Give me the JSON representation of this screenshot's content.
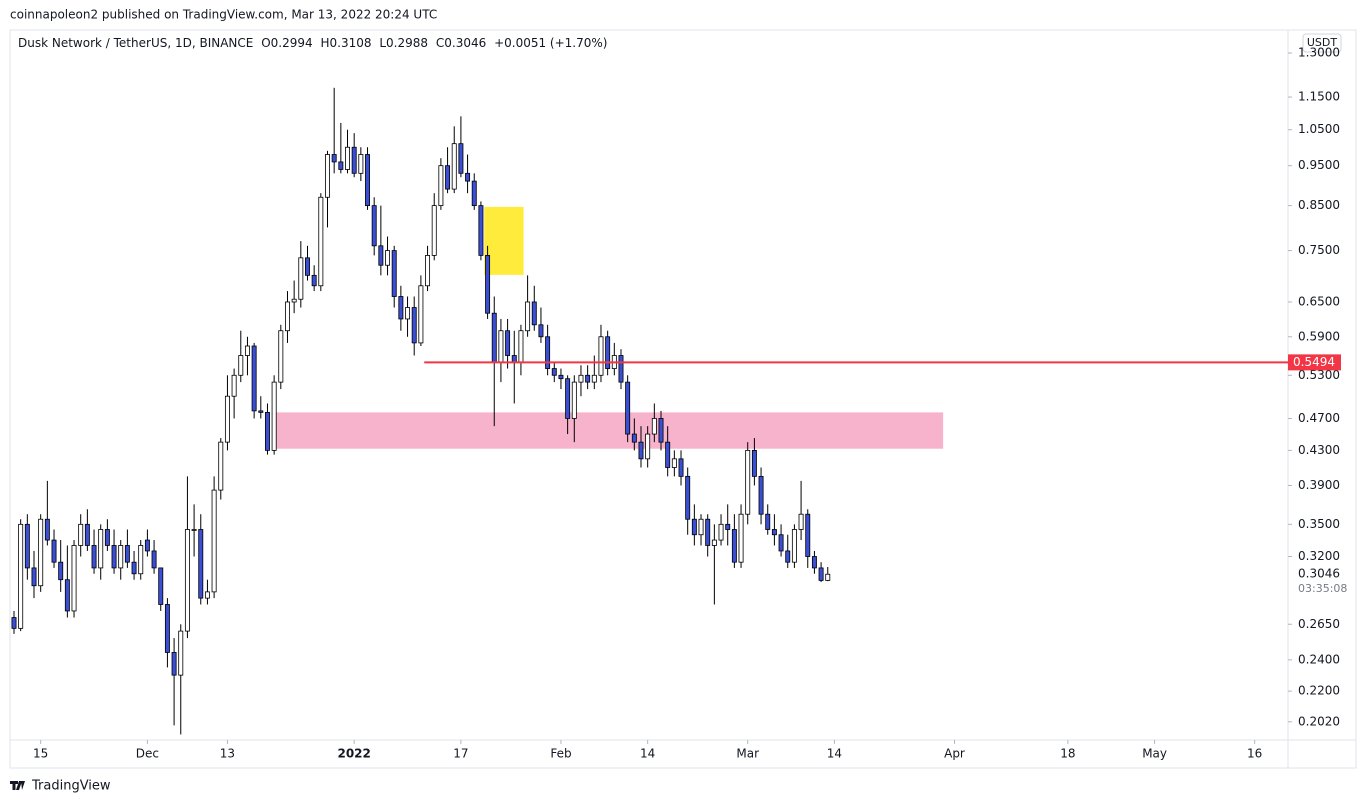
{
  "header": "coinnapoleon2 published on TradingView.com, Mar 13, 2022 20:24 UTC",
  "footer": "TradingView",
  "chart_data": {
    "type": "candlestick",
    "symbol": "Dusk Network / TetherUS, 1D, BINANCE",
    "ohlc_labels": [
      "O",
      "H",
      "L",
      "C"
    ],
    "change_text": "+0.0051 (+1.70%)",
    "currency": "USDT",
    "countdown": "03:35:08",
    "log_scale": true,
    "grid": false,
    "up_color": "#ffffff",
    "down_color": "#3a4fd3",
    "xlim": [
      -0.6,
      191
    ],
    "xticks": [
      {
        "value": 4,
        "label": "15"
      },
      {
        "value": 20,
        "label": "Dec"
      },
      {
        "value": 32,
        "label": "13"
      },
      {
        "value": 51,
        "label": "2022"
      },
      {
        "value": 67,
        "label": "17"
      },
      {
        "value": 82,
        "label": "Feb"
      },
      {
        "value": 95,
        "label": "14"
      },
      {
        "value": 110,
        "label": "Mar"
      },
      {
        "value": 123,
        "label": "14"
      },
      {
        "value": 141,
        "label": "Apr"
      },
      {
        "value": 158,
        "label": "18"
      },
      {
        "value": 171,
        "label": "May"
      },
      {
        "value": 186,
        "label": "16"
      }
    ],
    "ylim": [
      0.192,
      1.386
    ],
    "yticks": [
      {
        "value": 1.3,
        "label": "1.3000"
      },
      {
        "value": 1.15,
        "label": "1.1500"
      },
      {
        "value": 1.05,
        "label": "1.0500"
      },
      {
        "value": 0.95,
        "label": "0.9500"
      },
      {
        "value": 0.85,
        "label": "0.8500"
      },
      {
        "value": 0.75,
        "label": "0.7500"
      },
      {
        "value": 0.65,
        "label": "0.6500"
      },
      {
        "value": 0.59,
        "label": "0.5900"
      },
      {
        "value": 0.53,
        "label": "0.5300"
      },
      {
        "value": 0.47,
        "label": "0.4700"
      },
      {
        "value": 0.43,
        "label": "0.4300"
      },
      {
        "value": 0.39,
        "label": "0.3900"
      },
      {
        "value": 0.35,
        "label": "0.3500"
      },
      {
        "value": 0.32,
        "label": "0.3200"
      },
      {
        "value": 0.265,
        "label": "0.2650"
      },
      {
        "value": 0.24,
        "label": "0.2400"
      },
      {
        "value": 0.22,
        "label": "0.2200"
      },
      {
        "value": 0.202,
        "label": "0.2020"
      }
    ],
    "open": [
      0.27,
      0.262,
      0.35,
      0.31,
      0.295,
      0.355,
      0.335,
      0.315,
      0.3,
      0.275,
      0.33,
      0.35,
      0.33,
      0.31,
      0.345,
      0.33,
      0.31,
      0.33,
      0.315,
      0.305,
      0.335,
      0.325,
      0.31,
      0.28,
      0.245,
      0.23,
      0.26,
      0.345,
      0.345,
      0.285,
      0.29,
      0.385,
      0.44,
      0.5,
      0.53,
      0.56,
      0.575,
      0.48,
      0.478,
      0.43,
      0.52,
      0.6,
      0.65,
      0.655,
      0.735,
      0.7,
      0.68,
      0.87,
      0.98,
      0.96,
      0.94,
      1.0,
      0.93,
      0.98,
      0.85,
      0.76,
      0.72,
      0.75,
      0.66,
      0.62,
      0.64,
      0.58,
      0.68,
      0.74,
      0.85,
      0.95,
      0.89,
      1.01,
      0.93,
      0.91,
      0.85,
      0.74,
      0.63,
      0.55,
      0.6,
      0.56,
      0.55,
      0.6,
      0.65,
      0.61,
      0.59,
      0.54,
      0.53,
      0.525,
      0.47,
      0.52,
      0.53,
      0.52,
      0.53,
      0.59,
      0.54,
      0.56,
      0.52,
      0.45,
      0.44,
      0.42,
      0.45,
      0.47,
      0.44,
      0.41,
      0.42,
      0.4,
      0.355,
      0.34,
      0.355,
      0.33,
      0.335,
      0.35,
      0.345,
      0.315,
      0.36,
      0.43,
      0.4,
      0.36,
      0.345,
      0.34,
      0.325,
      0.315,
      0.345,
      0.36,
      0.32,
      0.31,
      0.2994
    ],
    "high": [
      0.275,
      0.355,
      0.36,
      0.325,
      0.36,
      0.395,
      0.345,
      0.335,
      0.33,
      0.335,
      0.36,
      0.365,
      0.345,
      0.35,
      0.355,
      0.345,
      0.335,
      0.345,
      0.325,
      0.335,
      0.345,
      0.335,
      0.31,
      0.285,
      0.255,
      0.265,
      0.4,
      0.37,
      0.36,
      0.3,
      0.4,
      0.445,
      0.53,
      0.54,
      0.6,
      0.59,
      0.58,
      0.5,
      0.49,
      0.53,
      0.61,
      0.67,
      0.69,
      0.77,
      0.76,
      0.72,
      0.88,
      0.99,
      1.18,
      1.07,
      1.05,
      1.04,
      1.0,
      1.0,
      0.87,
      0.85,
      0.78,
      0.76,
      0.68,
      0.66,
      0.66,
      0.7,
      0.76,
      0.88,
      0.97,
      1.0,
      1.06,
      1.09,
      0.98,
      0.93,
      0.86,
      0.76,
      0.66,
      0.62,
      0.62,
      0.6,
      0.61,
      0.7,
      0.68,
      0.64,
      0.61,
      0.55,
      0.54,
      0.53,
      0.53,
      0.545,
      0.545,
      0.56,
      0.61,
      0.6,
      0.58,
      0.57,
      0.53,
      0.47,
      0.46,
      0.46,
      0.49,
      0.48,
      0.46,
      0.43,
      0.43,
      0.41,
      0.37,
      0.36,
      0.36,
      0.35,
      0.36,
      0.37,
      0.36,
      0.37,
      0.44,
      0.445,
      0.41,
      0.37,
      0.36,
      0.35,
      0.34,
      0.35,
      0.395,
      0.365,
      0.325,
      0.315,
      0.3108
    ],
    "low": [
      0.258,
      0.26,
      0.3,
      0.285,
      0.29,
      0.33,
      0.31,
      0.29,
      0.27,
      0.27,
      0.32,
      0.325,
      0.305,
      0.3,
      0.325,
      0.305,
      0.3,
      0.31,
      0.3,
      0.3,
      0.32,
      0.305,
      0.275,
      0.235,
      0.2,
      0.195,
      0.255,
      0.32,
      0.28,
      0.28,
      0.285,
      0.375,
      0.43,
      0.47,
      0.52,
      0.53,
      0.47,
      0.47,
      0.425,
      0.425,
      0.51,
      0.58,
      0.63,
      0.64,
      0.69,
      0.67,
      0.67,
      0.8,
      0.93,
      0.93,
      0.93,
      0.92,
      0.91,
      0.84,
      0.74,
      0.7,
      0.7,
      0.64,
      0.6,
      0.59,
      0.56,
      0.575,
      0.67,
      0.73,
      0.84,
      0.88,
      0.88,
      0.92,
      0.88,
      0.84,
      0.73,
      0.62,
      0.46,
      0.52,
      0.54,
      0.49,
      0.53,
      0.59,
      0.6,
      0.58,
      0.53,
      0.52,
      0.51,
      0.45,
      0.44,
      0.5,
      0.51,
      0.51,
      0.52,
      0.53,
      0.53,
      0.51,
      0.44,
      0.43,
      0.41,
      0.41,
      0.44,
      0.43,
      0.4,
      0.4,
      0.39,
      0.34,
      0.33,
      0.33,
      0.32,
      0.28,
      0.33,
      0.33,
      0.31,
      0.31,
      0.35,
      0.39,
      0.35,
      0.34,
      0.33,
      0.32,
      0.31,
      0.31,
      0.335,
      0.31,
      0.305,
      0.298,
      0.2988
    ],
    "close": [
      0.262,
      0.35,
      0.31,
      0.295,
      0.355,
      0.335,
      0.315,
      0.3,
      0.275,
      0.33,
      0.35,
      0.33,
      0.31,
      0.345,
      0.33,
      0.31,
      0.33,
      0.315,
      0.305,
      0.33,
      0.325,
      0.31,
      0.28,
      0.245,
      0.23,
      0.26,
      0.345,
      0.345,
      0.285,
      0.29,
      0.385,
      0.44,
      0.5,
      0.53,
      0.56,
      0.575,
      0.48,
      0.478,
      0.43,
      0.52,
      0.6,
      0.65,
      0.655,
      0.735,
      0.7,
      0.68,
      0.87,
      0.98,
      0.96,
      0.94,
      1.0,
      0.93,
      0.98,
      0.85,
      0.76,
      0.72,
      0.75,
      0.66,
      0.62,
      0.64,
      0.58,
      0.68,
      0.74,
      0.85,
      0.95,
      0.89,
      1.01,
      0.93,
      0.91,
      0.85,
      0.74,
      0.63,
      0.55,
      0.6,
      0.56,
      0.55,
      0.6,
      0.65,
      0.61,
      0.59,
      0.54,
      0.53,
      0.525,
      0.47,
      0.52,
      0.53,
      0.52,
      0.53,
      0.59,
      0.54,
      0.56,
      0.52,
      0.45,
      0.44,
      0.42,
      0.45,
      0.47,
      0.44,
      0.41,
      0.42,
      0.4,
      0.355,
      0.34,
      0.355,
      0.33,
      0.335,
      0.35,
      0.345,
      0.315,
      0.36,
      0.43,
      0.4,
      0.36,
      0.345,
      0.34,
      0.325,
      0.315,
      0.345,
      0.36,
      0.32,
      0.31,
      0.2994,
      0.3046
    ],
    "hline": {
      "price": 0.5494,
      "start": 61.5,
      "color": "#f23645",
      "label_color": "#f23645"
    },
    "zones": [
      {
        "x0": 39,
        "x1": 139.3,
        "y0": 0.432,
        "y1": 0.478,
        "color": "#f7b3cc"
      },
      {
        "x0": 70.5,
        "x1": 76.4,
        "y0": 0.701,
        "y1": 0.847,
        "color": "#ffeb3b"
      }
    ]
  }
}
